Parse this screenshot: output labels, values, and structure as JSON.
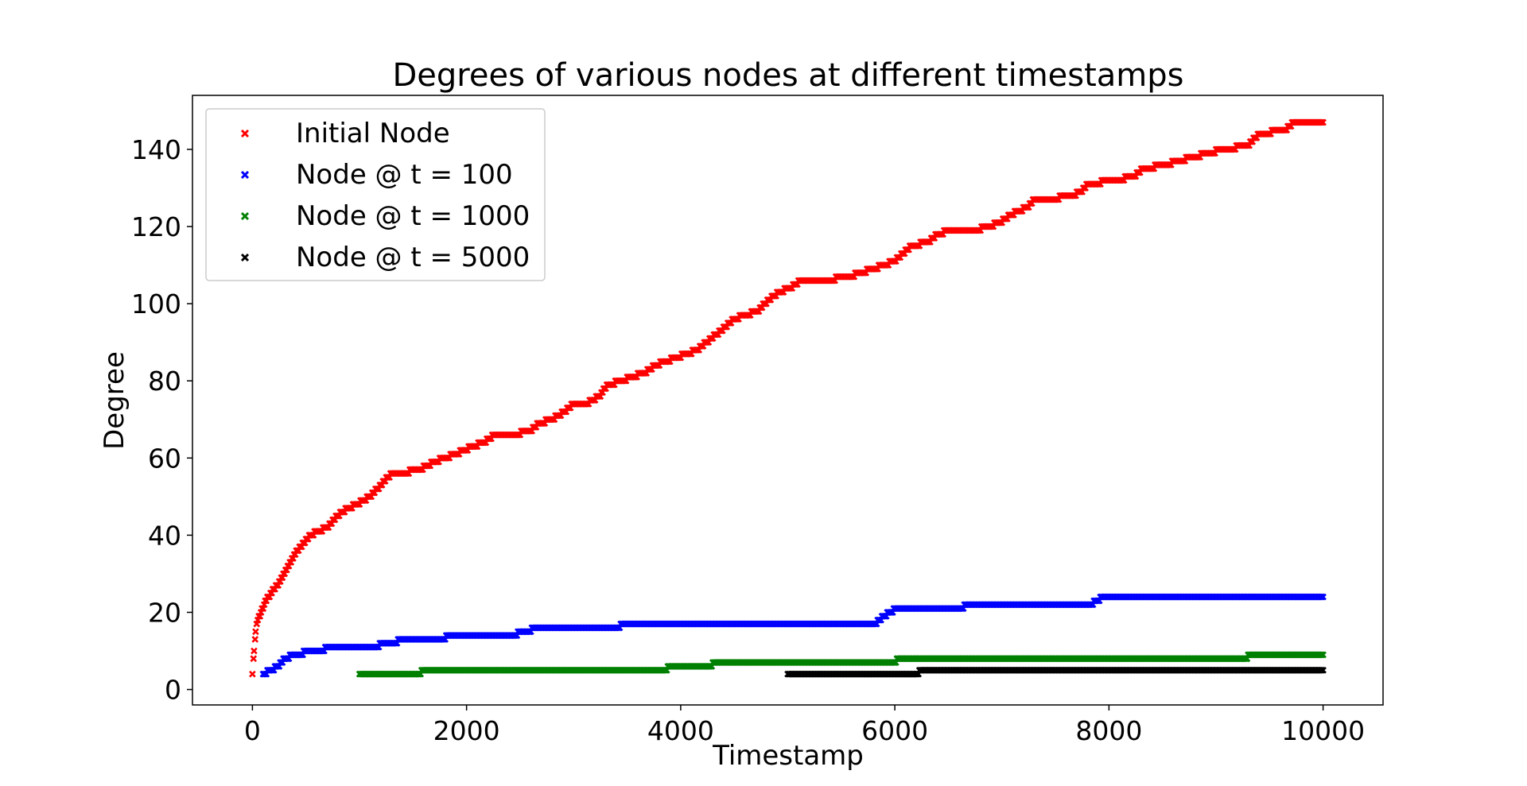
{
  "chart_data": {
    "type": "scatter",
    "title": "Degrees of various nodes at different timestamps",
    "xlabel": "Timestamp",
    "ylabel": "Degree",
    "xlim": [
      -560,
      10560
    ],
    "ylim": [
      -4,
      154
    ],
    "xticks": [
      0,
      2000,
      4000,
      6000,
      8000,
      10000
    ],
    "yticks": [
      0,
      20,
      40,
      60,
      80,
      100,
      120,
      140
    ],
    "marker": "x",
    "grid": false,
    "legend_position": "top-left",
    "series": [
      {
        "name": "Initial Node",
        "color": "#ff0000",
        "points": [
          [
            0,
            4
          ],
          [
            15,
            10
          ],
          [
            30,
            15
          ],
          [
            50,
            18
          ],
          [
            80,
            20
          ],
          [
            110,
            22
          ],
          [
            150,
            24
          ],
          [
            200,
            26
          ],
          [
            260,
            28
          ],
          [
            300,
            30
          ],
          [
            360,
            33
          ],
          [
            420,
            36
          ],
          [
            480,
            38
          ],
          [
            540,
            40
          ],
          [
            620,
            41
          ],
          [
            700,
            42
          ],
          [
            760,
            44
          ],
          [
            840,
            46
          ],
          [
            900,
            47
          ],
          [
            980,
            48
          ],
          [
            1100,
            50
          ],
          [
            1200,
            53
          ],
          [
            1300,
            56
          ],
          [
            1380,
            56
          ],
          [
            1550,
            57
          ],
          [
            1640,
            58
          ],
          [
            1700,
            59
          ],
          [
            1800,
            60
          ],
          [
            1900,
            61
          ],
          [
            1980,
            62
          ],
          [
            2060,
            63
          ],
          [
            2160,
            64
          ],
          [
            2260,
            66
          ],
          [
            2420,
            66
          ],
          [
            2600,
            67
          ],
          [
            2680,
            69
          ],
          [
            2800,
            70
          ],
          [
            2920,
            72
          ],
          [
            3000,
            74
          ],
          [
            3120,
            74
          ],
          [
            3240,
            76
          ],
          [
            3320,
            79
          ],
          [
            3460,
            80
          ],
          [
            3540,
            81
          ],
          [
            3660,
            82
          ],
          [
            3760,
            84
          ],
          [
            3860,
            85
          ],
          [
            3960,
            86
          ],
          [
            4060,
            87
          ],
          [
            4150,
            88
          ],
          [
            4240,
            90
          ],
          [
            4330,
            92
          ],
          [
            4420,
            94
          ],
          [
            4500,
            96
          ],
          [
            4600,
            97
          ],
          [
            4720,
            98
          ],
          [
            4820,
            101
          ],
          [
            4920,
            103
          ],
          [
            5020,
            104
          ],
          [
            5120,
            106
          ],
          [
            5320,
            106
          ],
          [
            5580,
            107
          ],
          [
            5680,
            108
          ],
          [
            5800,
            109
          ],
          [
            5900,
            110
          ],
          [
            6000,
            111
          ],
          [
            6080,
            113
          ],
          [
            6160,
            115
          ],
          [
            6320,
            116
          ],
          [
            6400,
            118
          ],
          [
            6520,
            119
          ],
          [
            6740,
            119
          ],
          [
            6880,
            120
          ],
          [
            6980,
            121
          ],
          [
            7080,
            123
          ],
          [
            7160,
            124
          ],
          [
            7240,
            125
          ],
          [
            7300,
            127
          ],
          [
            7420,
            127
          ],
          [
            7660,
            128
          ],
          [
            7740,
            129
          ],
          [
            7800,
            131
          ],
          [
            8060,
            132
          ],
          [
            8240,
            133
          ],
          [
            8320,
            135
          ],
          [
            8540,
            136
          ],
          [
            8640,
            137
          ],
          [
            8800,
            138
          ],
          [
            8920,
            139
          ],
          [
            9080,
            140
          ],
          [
            9300,
            141
          ],
          [
            9400,
            144
          ],
          [
            9640,
            145
          ],
          [
            9730,
            147
          ],
          [
            10000,
            147
          ]
        ]
      },
      {
        "name": " Node @ t = 100",
        "color": "#0000ff",
        "points": [
          [
            100,
            4
          ],
          [
            180,
            5
          ],
          [
            240,
            6
          ],
          [
            300,
            8
          ],
          [
            400,
            9
          ],
          [
            560,
            10
          ],
          [
            620,
            10
          ],
          [
            740,
            11
          ],
          [
            1080,
            11
          ],
          [
            1300,
            12
          ],
          [
            1420,
            13
          ],
          [
            1800,
            13
          ],
          [
            1820,
            14
          ],
          [
            2360,
            14
          ],
          [
            2600,
            15
          ],
          [
            2620,
            16
          ],
          [
            3420,
            16
          ],
          [
            3460,
            17
          ],
          [
            5820,
            17
          ],
          [
            5860,
            18
          ],
          [
            5900,
            19
          ],
          [
            5960,
            20
          ],
          [
            6020,
            21
          ],
          [
            6640,
            21
          ],
          [
            6660,
            22
          ],
          [
            7840,
            22
          ],
          [
            7880,
            23
          ],
          [
            7960,
            24
          ],
          [
            10000,
            24
          ]
        ]
      },
      {
        "name": "Node @ t = 1000",
        "color": "#008000",
        "points": [
          [
            1000,
            4
          ],
          [
            1560,
            4
          ],
          [
            1600,
            5
          ],
          [
            3860,
            5
          ],
          [
            3900,
            6
          ],
          [
            4280,
            6
          ],
          [
            4320,
            7
          ],
          [
            6000,
            7
          ],
          [
            6040,
            8
          ],
          [
            9280,
            8
          ],
          [
            9320,
            9
          ],
          [
            10000,
            9
          ]
        ]
      },
      {
        "name": "Node @ t = 5000",
        "color": "#000000",
        "points": [
          [
            5000,
            4
          ],
          [
            6220,
            4
          ],
          [
            6240,
            5
          ],
          [
            10000,
            5
          ]
        ]
      }
    ]
  }
}
